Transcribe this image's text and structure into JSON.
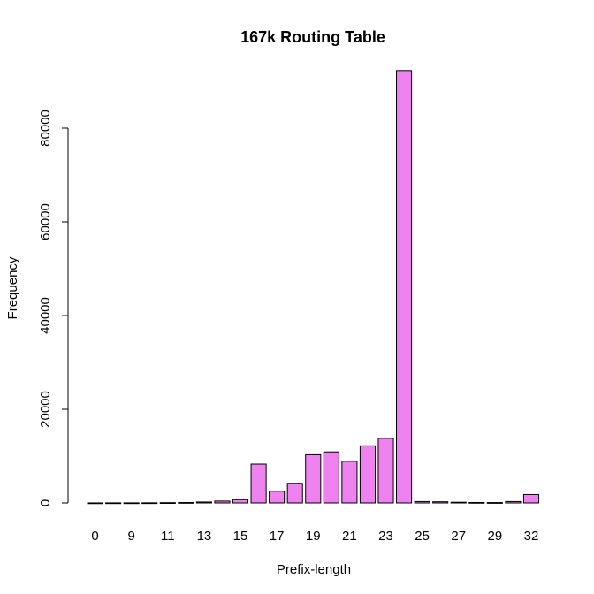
{
  "chart_data": {
    "type": "bar",
    "title": "167k Routing Table",
    "xlabel": "Prefix-length",
    "ylabel": "Frequency",
    "ylim": [
      0,
      92000
    ],
    "y_ticks": [
      0,
      20000,
      40000,
      60000,
      80000
    ],
    "grid": false,
    "bar_color": "#EE82EE",
    "categories": [
      "0",
      "8",
      "9",
      "10",
      "11",
      "12",
      "13",
      "14",
      "15",
      "16",
      "17",
      "18",
      "19",
      "20",
      "21",
      "22",
      "23",
      "24",
      "25",
      "26",
      "27",
      "28",
      "29",
      "30",
      "32"
    ],
    "x_tick_labels_shown": [
      "0",
      "9",
      "11",
      "13",
      "15",
      "17",
      "19",
      "21",
      "23",
      "25",
      "27",
      "29",
      "32"
    ],
    "series": [
      {
        "values": [
          10,
          20,
          20,
          30,
          60,
          90,
          200,
          400,
          700,
          8300,
          2500,
          4200,
          10300,
          10900,
          8900,
          12200,
          13800,
          92300,
          300,
          250,
          150,
          100,
          80,
          300,
          1800
        ]
      }
    ]
  }
}
